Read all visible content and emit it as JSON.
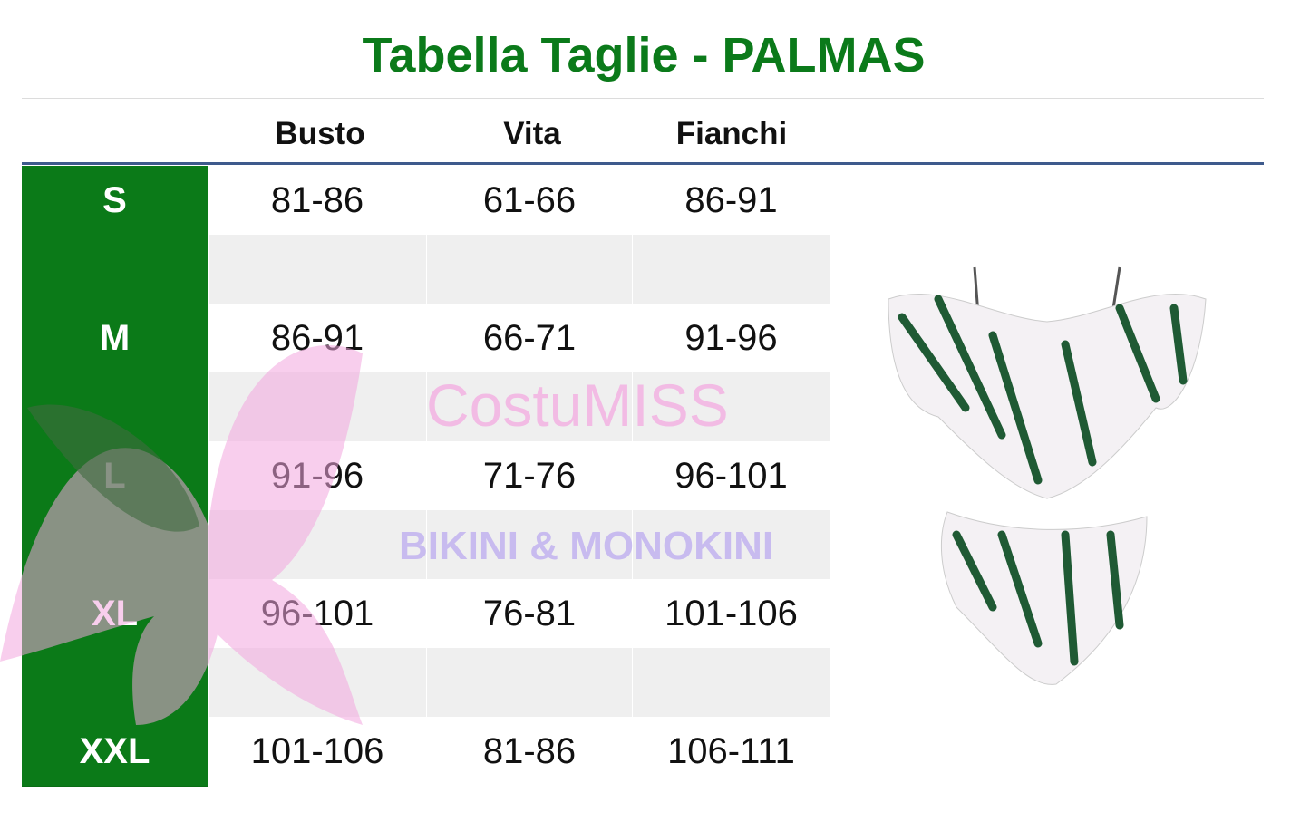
{
  "title": "Tabella Taglie - PALMAS",
  "headers": [
    "Busto",
    "Vita",
    "Fianchi"
  ],
  "rows": [
    {
      "size": "S",
      "busto": "81-86",
      "vita": "61-66",
      "fianchi": "86-91"
    },
    {
      "size": "",
      "busto": "",
      "vita": "",
      "fianchi": ""
    },
    {
      "size": "M",
      "busto": "86-91",
      "vita": "66-71",
      "fianchi": "91-96"
    },
    {
      "size": "",
      "busto": "",
      "vita": "",
      "fianchi": ""
    },
    {
      "size": "L",
      "busto": "91-96",
      "vita": "71-76",
      "fianchi": "96-101"
    },
    {
      "size": "",
      "busto": "",
      "vita": "",
      "fianchi": ""
    },
    {
      "size": "XL",
      "busto": "96-101",
      "vita": "76-81",
      "fianchi": "101-106"
    },
    {
      "size": "",
      "busto": "",
      "vita": "",
      "fianchi": ""
    },
    {
      "size": "XXL",
      "busto": "101-106",
      "vita": "81-86",
      "fianchi": "106-111"
    }
  ],
  "watermark": {
    "brand": "CostuMISS",
    "tagline": "BIKINI & MONOKINI"
  },
  "colors": {
    "title": "#0b7a1a",
    "size_column": "#0b7a18",
    "header_rule": "#3e5a8c",
    "alt_row": "#efefef"
  }
}
